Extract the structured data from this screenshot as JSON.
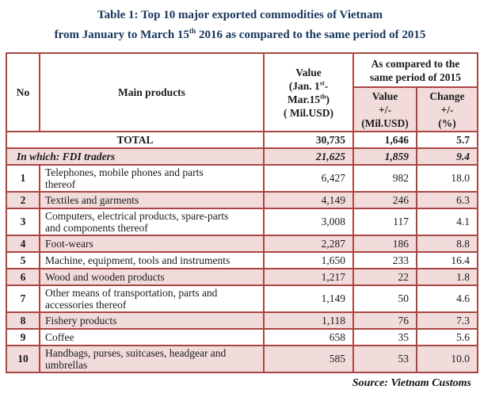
{
  "title": {
    "line1": "Table 1: Top 10 major exported commodities of Vietnam",
    "line2_pre": "from January to March 15",
    "line2_sup": "th",
    "line2_post": " 2016  as compared to the same period of 2015"
  },
  "colors": {
    "border_red": "#a94643",
    "row_pink": "#f2dcdb",
    "title_navy": "#17365d",
    "text": "#1b1b1b"
  },
  "header": {
    "no": "No",
    "main_products": "Main products",
    "value_col": {
      "line1": "Value",
      "line2_pre": "(Jan. 1",
      "line2_sup": "st",
      "line2_post": "-",
      "line3_pre": "Mar.15",
      "line3_sup": "th",
      "line3_post": ")",
      "line4": "( Mil.USD)"
    },
    "compare_group": "As compared to the\nsame period of 2015",
    "compare_value": "Value\n+/-\n(Mil.USD)",
    "compare_change": "Change\n+/-\n(%)"
  },
  "summary": {
    "total": {
      "label": "TOTAL",
      "value": "30,735",
      "change_value": "1,646",
      "change_pct": "5.7"
    },
    "fdi": {
      "label": "In which: FDI traders",
      "value": "21,625",
      "change_value": "1,859",
      "change_pct": "9.4"
    }
  },
  "rows": [
    {
      "no": "1",
      "product": "Telephones, mobile phones and  parts\nthereof",
      "value": "6,427",
      "change_value": "982",
      "change_pct": "18.0"
    },
    {
      "no": "2",
      "product": "Textiles and garments",
      "value": "4,149",
      "change_value": "246",
      "change_pct": "6.3"
    },
    {
      "no": "3",
      "product": "Computers, electrical products, spare-parts\nand  components thereof",
      "value": "3,008",
      "change_value": "117",
      "change_pct": "4.1"
    },
    {
      "no": "4",
      "product": "Foot-wears",
      "value": "2,287",
      "change_value": "186",
      "change_pct": "8.8"
    },
    {
      "no": "5",
      "product": "Machine, equipment, tools and instruments",
      "value": "1,650",
      "change_value": "233",
      "change_pct": "16.4"
    },
    {
      "no": "6",
      "product": "Wood and wooden products",
      "value": "1,217",
      "change_value": "22",
      "change_pct": "1.8"
    },
    {
      "no": "7",
      "product": "Other means of transportation, parts and\naccessories thereof",
      "value": "1,149",
      "change_value": "50",
      "change_pct": "4.6"
    },
    {
      "no": "8",
      "product": "Fishery products",
      "value": "1,118",
      "change_value": "76",
      "change_pct": "7.3"
    },
    {
      "no": "9",
      "product": "Coffee",
      "value": "658",
      "change_value": "35",
      "change_pct": "5.6"
    },
    {
      "no": "10",
      "product": "Handbags, purses, suitcases, headgear and\numbrellas",
      "value": "585",
      "change_value": "53",
      "change_pct": "10.0"
    }
  ],
  "source": "Source: Vietnam Customs"
}
